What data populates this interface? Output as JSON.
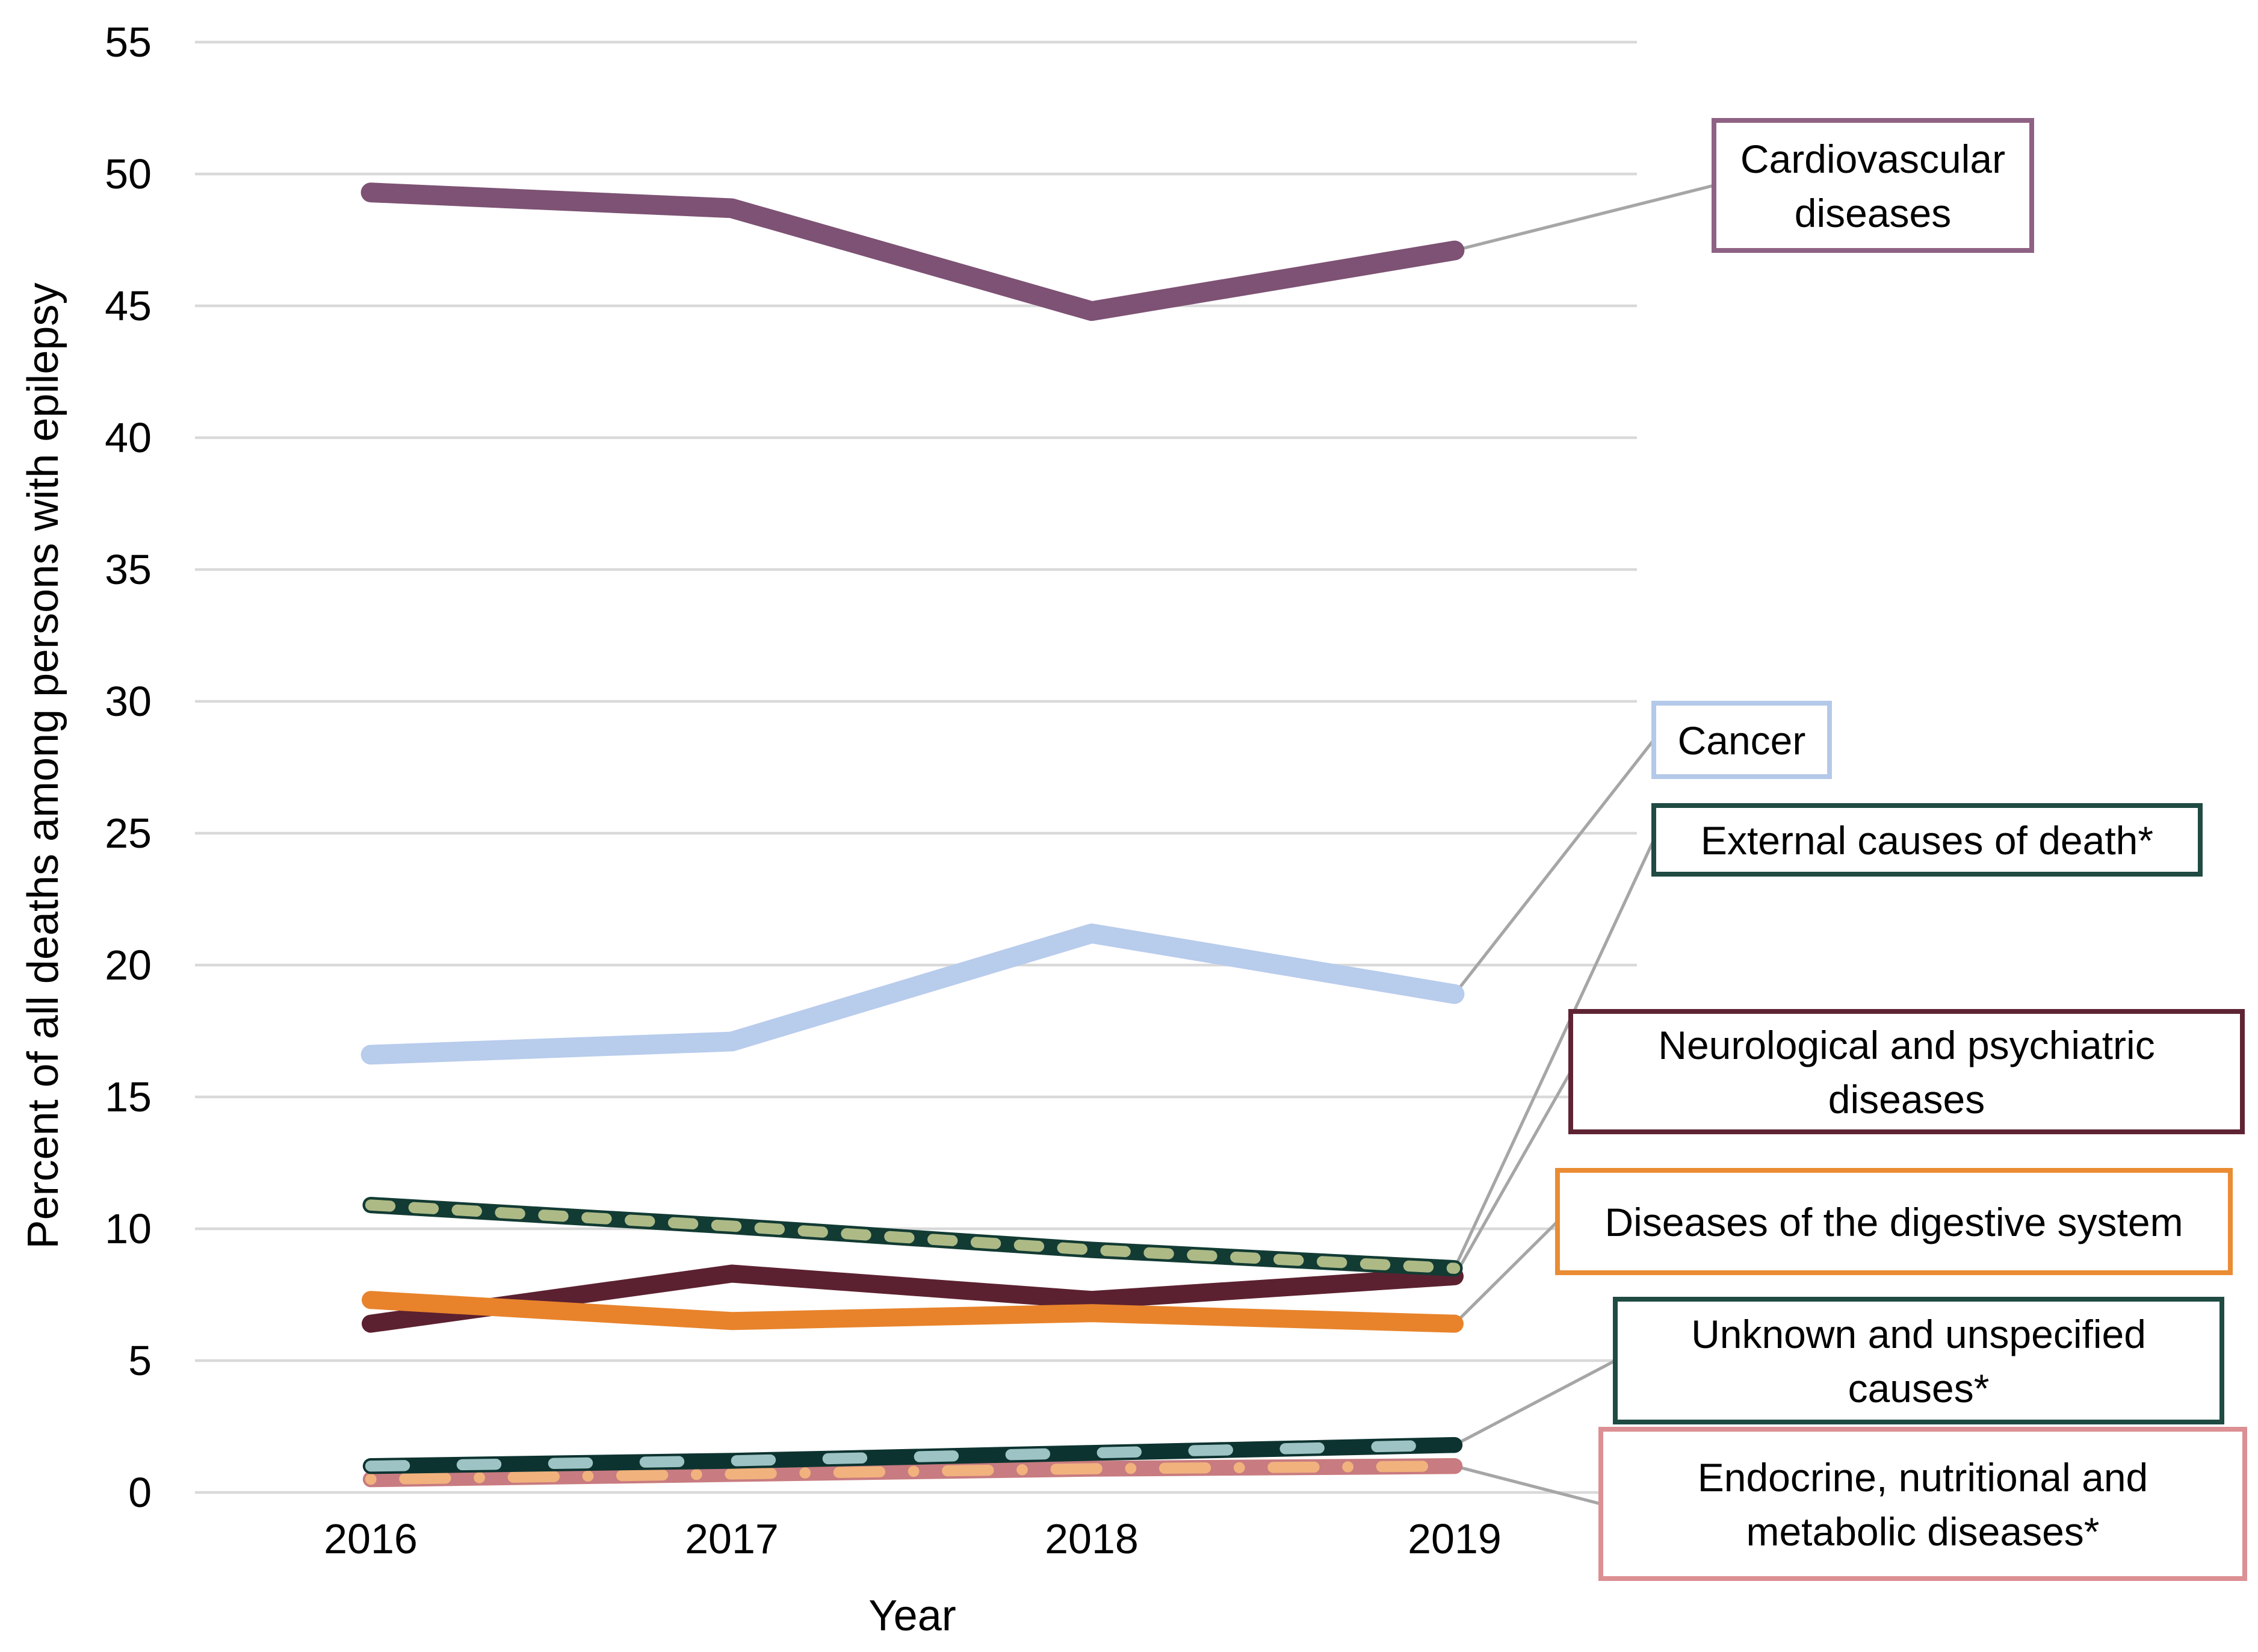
{
  "chart_data": {
    "type": "line",
    "title": "",
    "xlabel": "Year",
    "ylabel": "Percent of all deaths among persons with epilepsy",
    "x_categories": [
      "2016",
      "2017",
      "2018",
      "2019"
    ],
    "yticks": [
      0,
      5,
      10,
      15,
      20,
      25,
      30,
      35,
      40,
      45,
      50,
      55
    ],
    "ylim": [
      0,
      55
    ],
    "grid": "horizontal",
    "legend_position": "right-callout-boxes",
    "series": [
      {
        "name": "Cardiovascular diseases",
        "label_lines": [
          "Cardiovascular",
          "diseases"
        ],
        "values": [
          49.3,
          48.7,
          44.8,
          47.1
        ],
        "color": "#7D5274",
        "box_border": "#8E6284",
        "style": "solid"
      },
      {
        "name": "Cancer",
        "label_lines": [
          "Cancer"
        ],
        "values": [
          16.6,
          17.1,
          21.2,
          18.9
        ],
        "color": "#B8CCEC",
        "box_border": "#B4C9E9",
        "style": "solid"
      },
      {
        "name": "External causes of death*",
        "label_lines": [
          "External causes of death*"
        ],
        "values": [
          10.9,
          10.1,
          9.2,
          8.5
        ],
        "color": "#123B33",
        "dash_color": "#ADBA86",
        "box_border": "#1F4B43",
        "style": "dashed-overlay"
      },
      {
        "name": "Neurological and psychiatric diseases",
        "label_lines": [
          "Neurological and psychiatric",
          "diseases"
        ],
        "values": [
          6.4,
          8.3,
          7.3,
          8.2
        ],
        "color": "#5C2130",
        "box_border": "#5F2433",
        "style": "solid"
      },
      {
        "name": "Diseases of the digestive system",
        "label_lines": [
          "Diseases of the digestive system"
        ],
        "values": [
          7.3,
          6.5,
          6.8,
          6.4
        ],
        "color": "#E8832B",
        "box_border": "#EA8C33",
        "style": "solid"
      },
      {
        "name": "Unknown and unspecified causes*",
        "label_lines": [
          "Unknown and unspecified",
          "causes*"
        ],
        "values": [
          1.0,
          1.2,
          1.5,
          1.8
        ],
        "color": "#0D3330",
        "dash_color": "#9DC3C4",
        "box_border": "#1F4B43",
        "style": "long-dash-overlay"
      },
      {
        "name": "Endocrine, nutritional and metabolic diseases*",
        "label_lines": [
          "Endocrine, nutritional and",
          "metabolic diseases*"
        ],
        "values": [
          0.5,
          0.7,
          0.9,
          1.0
        ],
        "color": "#C87B80",
        "dash_color": "#F1B27D",
        "box_border": "#DC9094",
        "style": "dash-dot-overlay"
      }
    ],
    "colors": {
      "gridline": "#D9D9D9",
      "leader_line": "#A6A6A6",
      "label_box_fill": "#FFFFFF",
      "text": "#000000"
    }
  }
}
